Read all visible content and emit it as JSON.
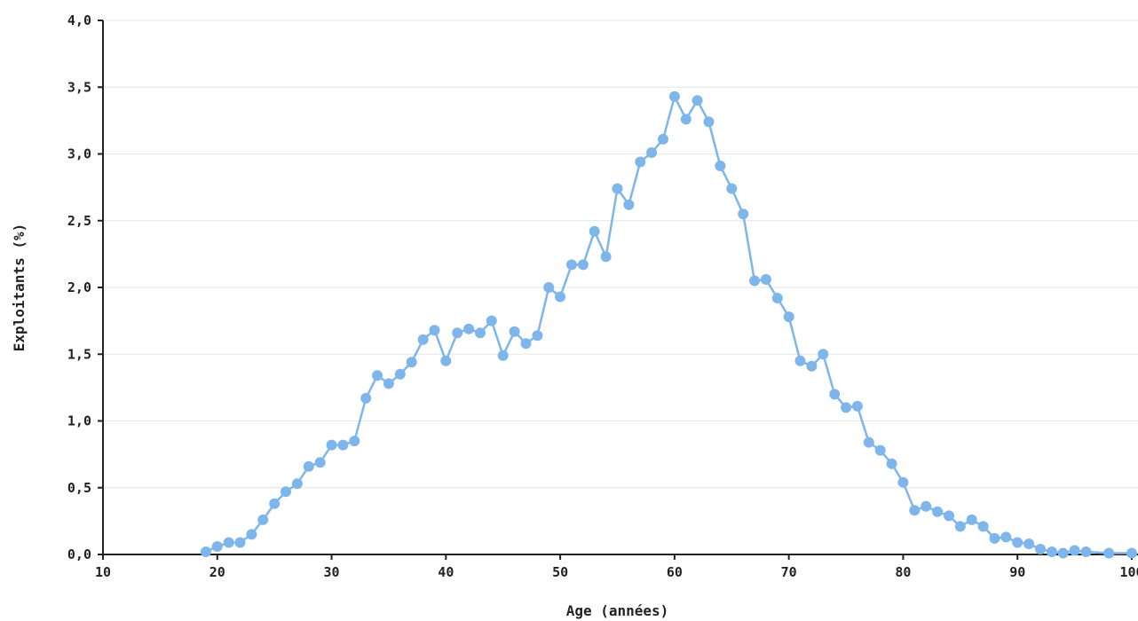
{
  "chart_data": {
    "type": "line",
    "title": "",
    "xlabel": "Age (années)",
    "ylabel": "Exploitants (%)",
    "xlim": [
      10,
      100
    ],
    "ylim": [
      0,
      4
    ],
    "x_ticks": [
      10,
      20,
      30,
      40,
      50,
      60,
      70,
      80,
      90,
      100
    ],
    "x_tick_labels": [
      "10",
      "20",
      "30",
      "40",
      "50",
      "60",
      "70",
      "80",
      "90",
      "100"
    ],
    "y_ticks": [
      0,
      0.5,
      1,
      1.5,
      2,
      2.5,
      3,
      3.5,
      4
    ],
    "y_tick_labels": [
      "0,0",
      "0,5",
      "1,0",
      "1,5",
      "2,0",
      "2,5",
      "3,0",
      "3,5",
      "4,0"
    ],
    "grid": true,
    "legend": "none",
    "series": [
      {
        "color": "#7eb6ec",
        "points": [
          [
            19,
            0.02
          ],
          [
            20,
            0.06
          ],
          [
            21,
            0.09
          ],
          [
            22,
            0.09
          ],
          [
            23,
            0.15
          ],
          [
            24,
            0.26
          ],
          [
            25,
            0.38
          ],
          [
            26,
            0.47
          ],
          [
            27,
            0.53
          ],
          [
            28,
            0.66
          ],
          [
            29,
            0.69
          ],
          [
            30,
            0.82
          ],
          [
            31,
            0.82
          ],
          [
            32,
            0.85
          ],
          [
            33,
            1.17
          ],
          [
            34,
            1.34
          ],
          [
            35,
            1.28
          ],
          [
            36,
            1.35
          ],
          [
            37,
            1.44
          ],
          [
            38,
            1.61
          ],
          [
            39,
            1.68
          ],
          [
            40,
            1.45
          ],
          [
            41,
            1.66
          ],
          [
            42,
            1.69
          ],
          [
            43,
            1.66
          ],
          [
            44,
            1.75
          ],
          [
            45,
            1.49
          ],
          [
            46,
            1.67
          ],
          [
            47,
            1.58
          ],
          [
            48,
            1.64
          ],
          [
            49,
            2.0
          ],
          [
            50,
            1.93
          ],
          [
            51,
            2.17
          ],
          [
            52,
            2.17
          ],
          [
            53,
            2.42
          ],
          [
            54,
            2.23
          ],
          [
            55,
            2.74
          ],
          [
            56,
            2.62
          ],
          [
            57,
            2.94
          ],
          [
            58,
            3.01
          ],
          [
            59,
            3.11
          ],
          [
            60,
            3.43
          ],
          [
            61,
            3.26
          ],
          [
            62,
            3.4
          ],
          [
            63,
            3.24
          ],
          [
            64,
            2.91
          ],
          [
            65,
            2.74
          ],
          [
            66,
            2.55
          ],
          [
            67,
            2.05
          ],
          [
            68,
            2.06
          ],
          [
            69,
            1.92
          ],
          [
            70,
            1.78
          ],
          [
            71,
            1.45
          ],
          [
            72,
            1.41
          ],
          [
            73,
            1.5
          ],
          [
            74,
            1.2
          ],
          [
            75,
            1.1
          ],
          [
            76,
            1.11
          ],
          [
            77,
            0.84
          ],
          [
            78,
            0.78
          ],
          [
            79,
            0.68
          ],
          [
            80,
            0.54
          ],
          [
            81,
            0.33
          ],
          [
            82,
            0.36
          ],
          [
            83,
            0.32
          ],
          [
            84,
            0.29
          ],
          [
            85,
            0.21
          ],
          [
            86,
            0.26
          ],
          [
            87,
            0.21
          ],
          [
            88,
            0.12
          ],
          [
            89,
            0.13
          ],
          [
            90,
            0.09
          ],
          [
            91,
            0.08
          ],
          [
            92,
            0.04
          ],
          [
            93,
            0.02
          ],
          [
            94,
            0.01
          ],
          [
            95,
            0.03
          ],
          [
            96,
            0.02
          ],
          [
            98,
            0.01
          ],
          [
            100,
            0.01
          ]
        ]
      }
    ]
  }
}
